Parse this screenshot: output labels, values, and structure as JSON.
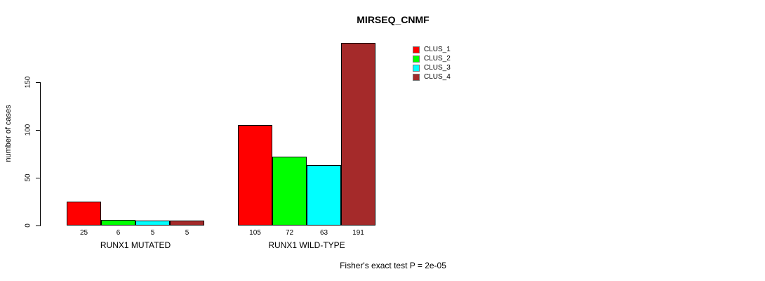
{
  "title": "MIRSEQ_CNMF",
  "footer_note": "Fisher's exact test P = 2e-05",
  "chart_data": {
    "type": "bar",
    "title": "MIRSEQ_CNMF",
    "xlabel": "",
    "ylabel": "number of cases",
    "categories": [
      "RUNX1 MUTATED",
      "RUNX1 WILD-TYPE"
    ],
    "series": [
      {
        "name": "CLUS_1",
        "color": "#ff0000",
        "values": [
          25,
          105
        ]
      },
      {
        "name": "CLUS_2",
        "color": "#00ff00",
        "values": [
          6,
          72
        ]
      },
      {
        "name": "CLUS_3",
        "color": "#00ffff",
        "values": [
          5,
          63
        ]
      },
      {
        "name": "CLUS_4",
        "color": "#a52a2a",
        "values": [
          5,
          191
        ]
      }
    ],
    "yticks": [
      0,
      50,
      100,
      150
    ],
    "ylim": [
      0,
      150
    ],
    "bar_value_labels": [
      [
        25,
        6,
        5,
        5
      ],
      [
        105,
        72,
        63,
        191
      ]
    ],
    "legend_entries": [
      "CLUS_1",
      "CLUS_2",
      "CLUS_3",
      "CLUS_4"
    ],
    "legend_position": "top-right-inside",
    "grid": false,
    "annotation": "Fisher's exact test P = 2e-05"
  }
}
